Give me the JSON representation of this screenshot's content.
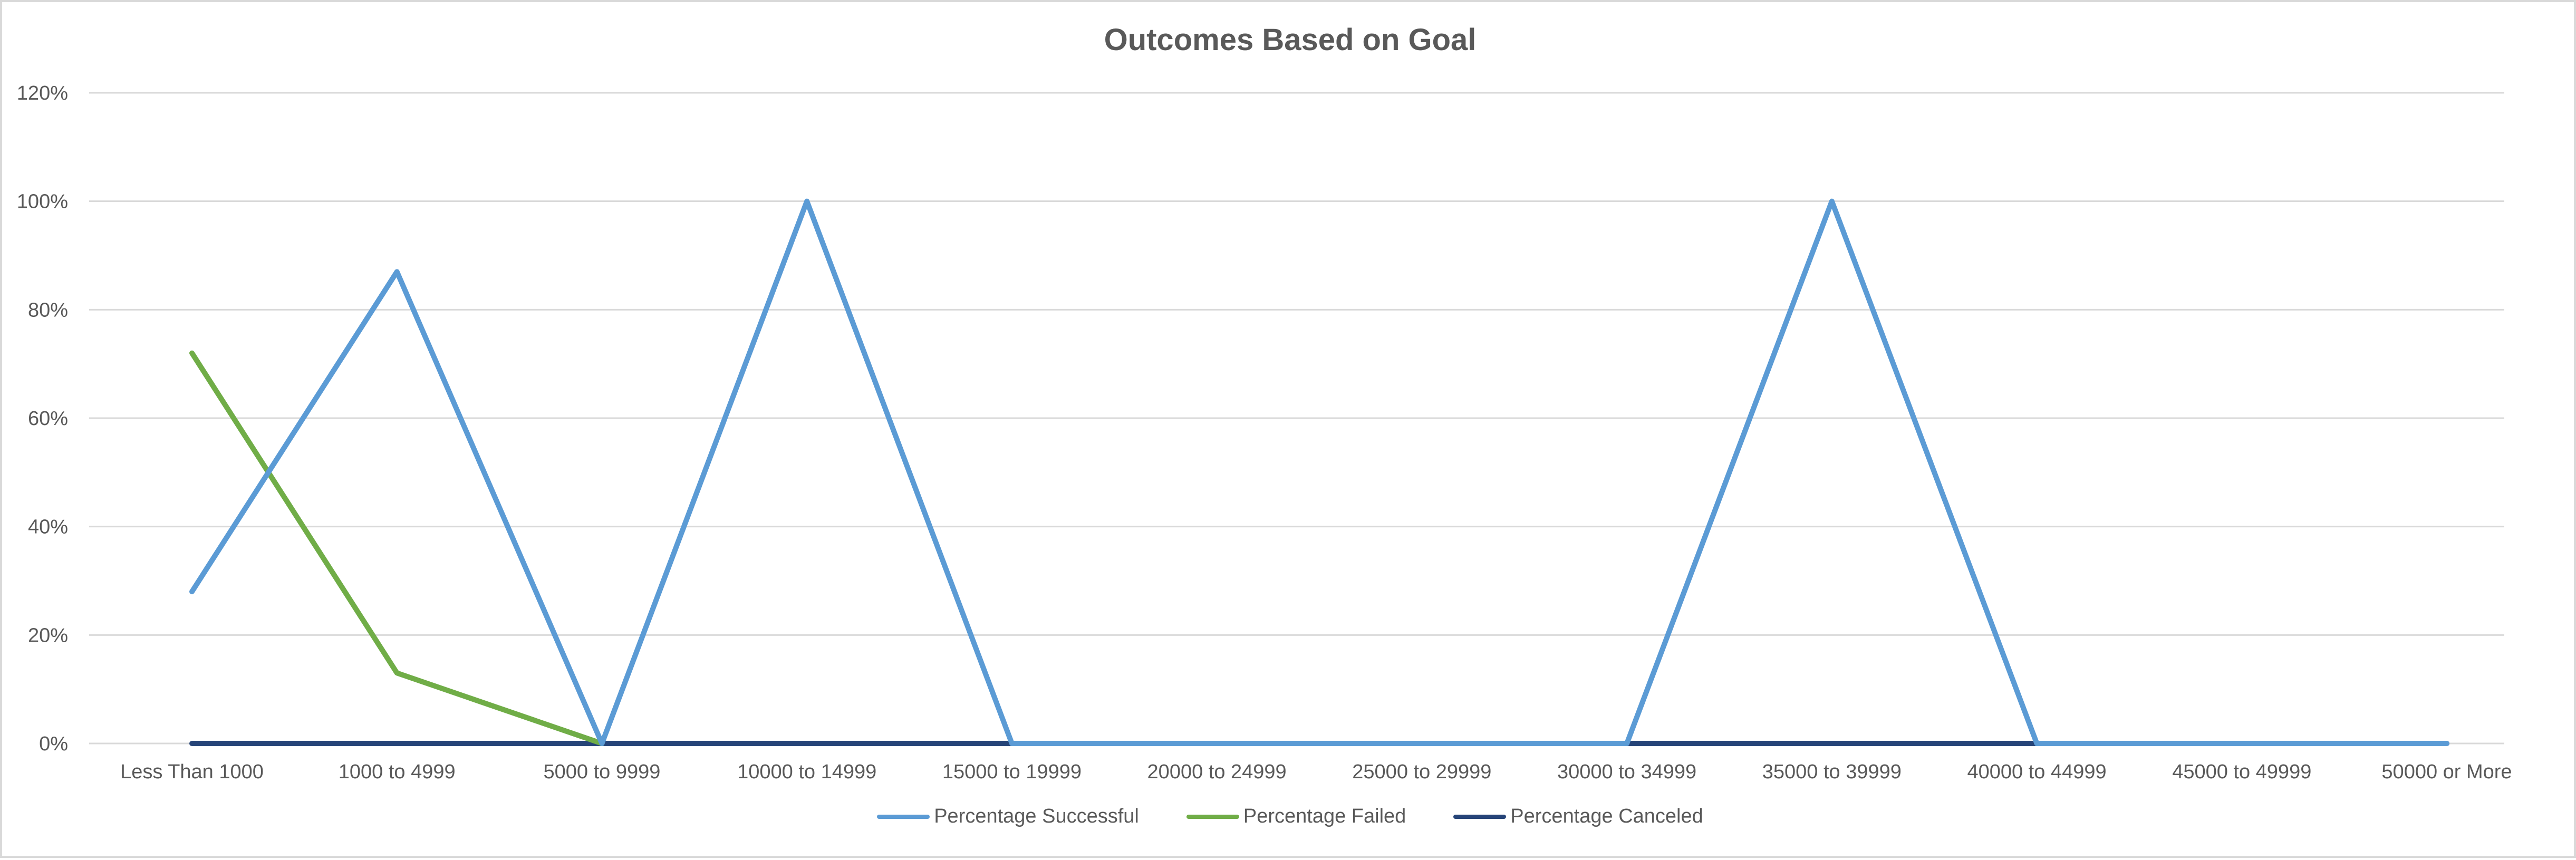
{
  "chart_data": {
    "type": "line",
    "title": "Outcomes Based on Goal",
    "xlabel": "",
    "ylabel": "",
    "categories": [
      "Less Than 1000",
      "1000 to 4999",
      "5000 to 9999",
      "10000 to 14999",
      "15000 to 19999",
      "20000 to 24999",
      "25000 to 29999",
      "30000 to 34999",
      "35000 to 39999",
      "40000 to 44999",
      "45000 to 49999",
      "50000 or More"
    ],
    "ylim": [
      0,
      120
    ],
    "yticks": [
      "0%",
      "20%",
      "40%",
      "60%",
      "80%",
      "100%",
      "120%"
    ],
    "yticks_values": [
      0,
      20,
      40,
      60,
      80,
      100,
      120
    ],
    "grid": true,
    "legend_position": "bottom",
    "series": [
      {
        "name": "Percentage Successful",
        "color": "#5b9bd5",
        "values": [
          28,
          87,
          0,
          100,
          0,
          0,
          0,
          0,
          100,
          0,
          0,
          0
        ]
      },
      {
        "name": "Percentage Failed",
        "color": "#70ad47",
        "values": [
          72,
          13,
          0,
          null,
          null,
          null,
          null,
          null,
          null,
          null,
          null,
          null
        ]
      },
      {
        "name": "Percentage Canceled",
        "color": "#264478",
        "values": [
          0,
          0,
          0,
          0,
          0,
          0,
          0,
          0,
          0,
          0,
          0,
          0
        ]
      }
    ]
  }
}
